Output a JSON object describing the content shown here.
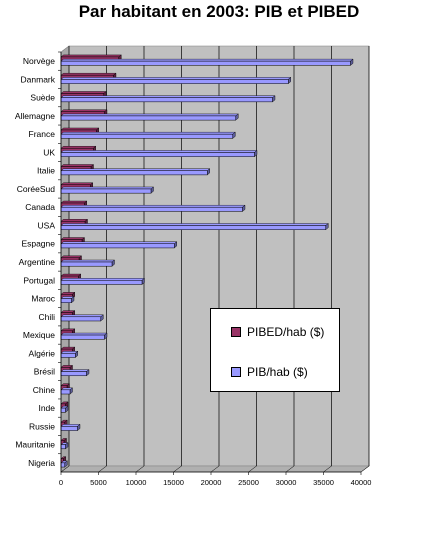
{
  "chart_data": {
    "type": "bar",
    "orientation": "horizontal",
    "title": "Par habitant en 2003: PIB et PIBED",
    "categories": [
      "Norvège",
      "Danmark",
      "Suède",
      "Allemagne",
      "France",
      "UK",
      "Italie",
      "CoréeSud",
      "Canada",
      "USA",
      "Espagne",
      "Argentine",
      "Portugal",
      "Maroc",
      "Chili",
      "Mexique",
      "Algérie",
      "Brésil",
      "Chine",
      "Inde",
      "Russie",
      "Mauritanie",
      "Nigeria"
    ],
    "series": [
      {
        "name": "PIBED/hab ($)",
        "color": "#993366",
        "values": [
          7700,
          7000,
          5700,
          5800,
          4700,
          4300,
          4000,
          3900,
          3100,
          3200,
          2800,
          2400,
          2300,
          1500,
          1500,
          1500,
          1500,
          1200,
          800,
          600,
          500,
          400,
          300
        ]
      },
      {
        "name": "PIB/hab ($)",
        "color": "#9999FF",
        "values": [
          38600,
          30300,
          28200,
          23300,
          22900,
          25800,
          19500,
          12000,
          24200,
          35300,
          15100,
          6800,
          10800,
          1400,
          5300,
          5800,
          1900,
          3400,
          1200,
          600,
          2200,
          600,
          500
        ]
      }
    ],
    "xlim": [
      0,
      40000
    ],
    "xticks": [
      0,
      5000,
      10000,
      15000,
      20000,
      25000,
      30000,
      35000,
      40000
    ],
    "grid": true,
    "legend": "right"
  },
  "legend": {
    "item1": "PIBED/hab ($)",
    "item2": "PIB/hab ($)"
  }
}
